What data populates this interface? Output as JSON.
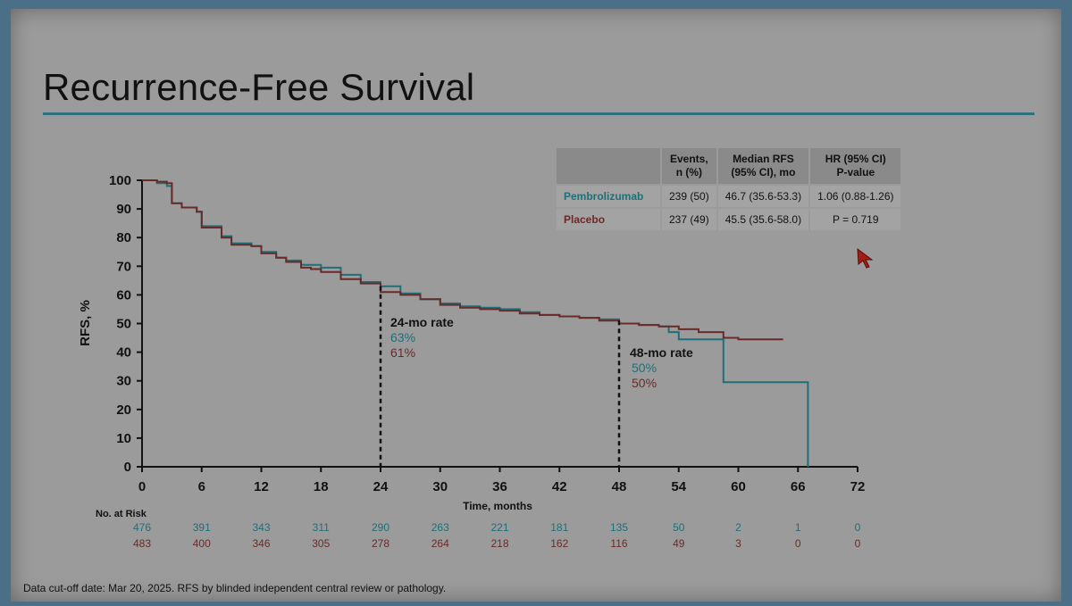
{
  "slide": {
    "title": "Recurrence-Free Survival",
    "footnote": "Data cut-off date: Mar 20, 2025. RFS by blinded independent central review or pathology."
  },
  "table": {
    "headers": [
      "",
      "Events,\nn (%)",
      "Median RFS\n(95% CI), mo",
      "HR (95% CI)\nP-value"
    ],
    "rows": [
      {
        "arm": "Pembrolizumab",
        "events": "239 (50)",
        "median": "46.7 (35.6-53.3)",
        "hr": "1.06 (0.88-1.26)"
      },
      {
        "arm": "Placebo",
        "events": "237 (49)",
        "median": "45.5 (35.6-58.0)",
        "hr": "P = 0.719"
      }
    ]
  },
  "chart_data": {
    "type": "line",
    "xlabel": "Time, months",
    "ylabel": "RFS, %",
    "xlim": [
      0,
      72
    ],
    "ylim": [
      0,
      100
    ],
    "x_ticks": [
      0,
      6,
      12,
      18,
      24,
      30,
      36,
      42,
      48,
      54,
      60,
      66,
      72
    ],
    "y_ticks": [
      0,
      10,
      20,
      30,
      40,
      50,
      60,
      70,
      80,
      90,
      100
    ],
    "grid": false,
    "series": [
      {
        "name": "Pembrolizumab",
        "color": "#1f6f79",
        "x": [
          0,
          1.5,
          2.5,
          3,
          4,
          5.5,
          6,
          8,
          9,
          11,
          12,
          13.5,
          14.5,
          16,
          17,
          18,
          20,
          22,
          24,
          26,
          28,
          30,
          32,
          34,
          36,
          38,
          40,
          42,
          44,
          46,
          48,
          50,
          52,
          53,
          54,
          55,
          57,
          58.5,
          58.5,
          67,
          67
        ],
        "y": [
          100,
          99,
          98,
          92,
          90.5,
          89,
          84,
          80.5,
          78,
          77,
          75,
          73,
          72,
          70.5,
          70.5,
          69.5,
          67,
          64.5,
          63,
          60.5,
          58.5,
          57,
          56,
          55.5,
          55,
          54,
          53,
          52.5,
          52,
          51.5,
          50,
          49.5,
          49,
          47,
          44.5,
          44.5,
          44.5,
          44.5,
          29.5,
          29.5,
          0
        ]
      },
      {
        "name": "Placebo",
        "color": "#6a2a2a",
        "x": [
          0,
          1.5,
          2.5,
          3,
          4,
          5.5,
          6,
          8,
          9,
          11,
          12,
          13.5,
          14.5,
          16,
          17,
          18,
          20,
          22,
          24,
          26,
          28,
          30,
          32,
          34,
          36,
          38,
          40,
          42,
          44,
          46,
          48,
          50,
          52,
          54,
          56,
          58.5,
          60,
          62,
          64.5
        ],
        "y": [
          100,
          99.5,
          99,
          92,
          90.5,
          89,
          83.5,
          80,
          77.5,
          77,
          74.5,
          73,
          71.5,
          69.5,
          69,
          68,
          65.5,
          64,
          61,
          60,
          58.5,
          56.5,
          55.5,
          55,
          54.5,
          53.5,
          53,
          52.5,
          52,
          51,
          50,
          49.5,
          49,
          48,
          47,
          45,
          44.5,
          44.5,
          44.5
        ]
      }
    ],
    "annotations": [
      {
        "x": 24,
        "label": "24-mo rate",
        "values": [
          "63%",
          "61%"
        ]
      },
      {
        "x": 48,
        "label": "48-mo rate",
        "values": [
          "50%",
          "50%"
        ]
      }
    ],
    "at_risk": {
      "label": "No. at Risk",
      "times": [
        0,
        6,
        12,
        18,
        24,
        30,
        36,
        42,
        48,
        54,
        60,
        66,
        72
      ],
      "pembrolizumab": [
        "476",
        "391",
        "343",
        "311",
        "290",
        "263",
        "221",
        "181",
        "135",
        "50",
        "2",
        "1",
        "0"
      ],
      "placebo": [
        "483",
        "400",
        "346",
        "305",
        "278",
        "264",
        "218",
        "162",
        "116",
        "49",
        "3",
        "0",
        "0"
      ]
    }
  }
}
